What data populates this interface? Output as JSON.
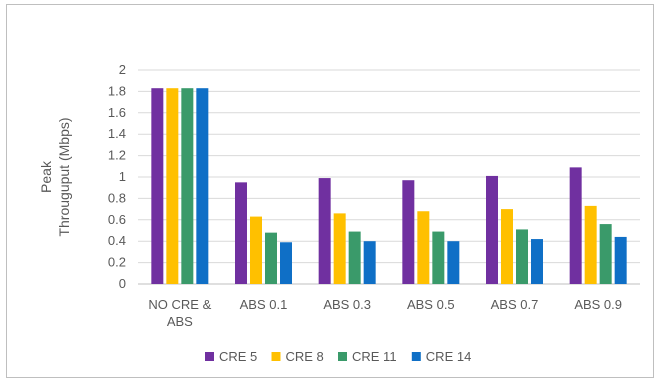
{
  "chart_data": {
    "type": "bar",
    "title": "",
    "xlabel": "",
    "ylabel": [
      "Peak",
      "Througuput (Mbps)"
    ],
    "ylim": [
      0,
      2
    ],
    "ytick_step": 0.2,
    "yticks": [
      "0",
      "0.2",
      "0.4",
      "0.6",
      "0.8",
      "1",
      "1.2",
      "1.4",
      "1.6",
      "1.8",
      "2"
    ],
    "grid": true,
    "legend_position": "bottom",
    "categories": [
      [
        "NO CRE &",
        "ABS"
      ],
      [
        "ABS 0.1"
      ],
      [
        "ABS 0.3"
      ],
      [
        "ABS 0.5"
      ],
      [
        "ABS 0.7"
      ],
      [
        "ABS 0.9"
      ]
    ],
    "series": [
      {
        "name": "CRE 5",
        "color": "#7030a0",
        "values": [
          1.83,
          0.95,
          0.99,
          0.97,
          1.01,
          1.09
        ]
      },
      {
        "name": "CRE 8",
        "color": "#ffc000",
        "values": [
          1.83,
          0.63,
          0.66,
          0.68,
          0.7,
          0.73
        ]
      },
      {
        "name": "CRE 11",
        "color": "#3a9a6a",
        "values": [
          1.83,
          0.48,
          0.49,
          0.49,
          0.51,
          0.56
        ]
      },
      {
        "name": "CRE 14",
        "color": "#0f6fc6",
        "values": [
          1.83,
          0.39,
          0.4,
          0.4,
          0.42,
          0.44
        ]
      }
    ]
  }
}
